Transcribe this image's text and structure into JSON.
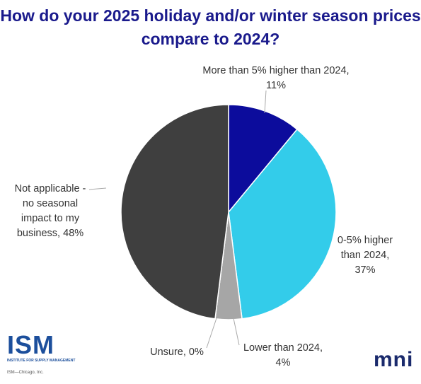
{
  "chart_data": {
    "type": "pie",
    "title": "How do your 2025 holiday and/or winter season prices compare to 2024?",
    "categories": [
      "More than 5% higher than 2024,",
      "0-5% higher than 2024,",
      "Lower than 2024,",
      "Unsure,",
      "Not applicable - no seasonal impact to my business,"
    ],
    "values": [
      11,
      37,
      4,
      0,
      48
    ],
    "value_labels": [
      "11%",
      "37%",
      "4%",
      "0%",
      "48%"
    ],
    "colors": [
      "#0c0c9c",
      "#33ccea",
      "#a6a6a6",
      "#d9d9d9",
      "#3f3f3f"
    ]
  },
  "logos": {
    "ism": "ISM",
    "ism_subtitle": "INSTITUTE FOR SUPPLY MANAGEMENT",
    "ism_footer": "ISM—Chicago, Inc.",
    "mni": "mni"
  }
}
